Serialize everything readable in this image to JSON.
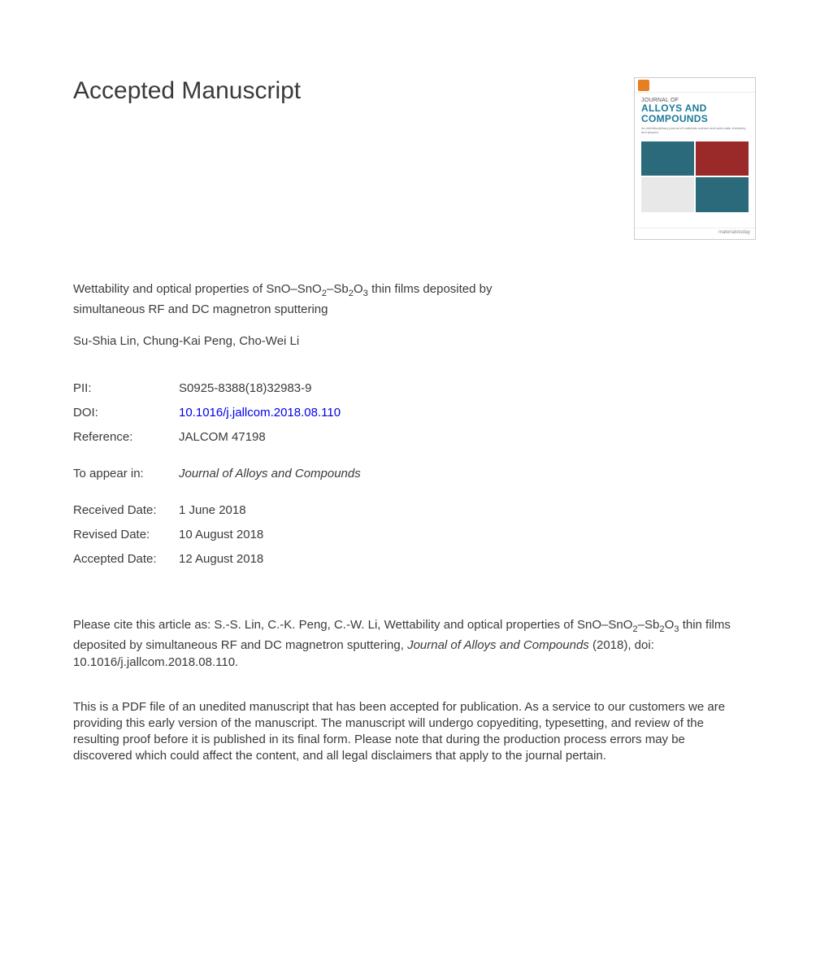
{
  "heading": "Accepted Manuscript",
  "cover": {
    "journal_of": "JOURNAL OF",
    "journal_name": "ALLOYS AND COMPOUNDS",
    "footer": "materialstoday",
    "colors": {
      "sq1": "#2a6a7a",
      "sq2": "#9a2a2a",
      "sq3": "#e8e8e8",
      "sq4": "#2a6a7a",
      "title_color": "#1a7a9a"
    }
  },
  "title_html": "Wettability and optical properties of SnO–SnO<sub>2</sub>–Sb<sub>2</sub>O<sub>3</sub> thin films deposited by simultaneous RF and DC magnetron sputtering",
  "authors": "Su-Shia Lin, Chung-Kai Peng, Cho-Wei Li",
  "meta": {
    "pii_label": "PII:",
    "pii_value": "S0925-8388(18)32983-9",
    "doi_label": "DOI:",
    "doi_value": "10.1016/j.jallcom.2018.08.110",
    "ref_label": "Reference:",
    "ref_value": "JALCOM 47198",
    "appear_label": "To appear in:",
    "appear_value": "Journal of Alloys and Compounds",
    "received_label": "Received Date:",
    "received_value": "1 June 2018",
    "revised_label": "Revised Date:",
    "revised_value": "10 August 2018",
    "accepted_label": "Accepted Date:",
    "accepted_value": "12 August 2018"
  },
  "citation_html": "Please cite this article as: S.-S. Lin, C.-K. Peng, C.-W. Li, Wettability and optical properties of SnO–SnO<sub>2</sub>–Sb<sub>2</sub>O<sub>3</sub> thin films deposited by simultaneous RF and DC magnetron sputtering, <span class=\"italic\">Journal of Alloys and Compounds</span> (2018), doi: 10.1016/j.jallcom.2018.08.110.",
  "disclaimer": "This is a PDF file of an unedited manuscript that has been accepted for publication. As a service to our customers we are providing this early version of the manuscript. The manuscript will undergo copyediting, typesetting, and review of the resulting proof before it is published in its final form. Please note that during the production process errors may be discovered which could affect the content, and all legal disclaimers that apply to the journal pertain."
}
